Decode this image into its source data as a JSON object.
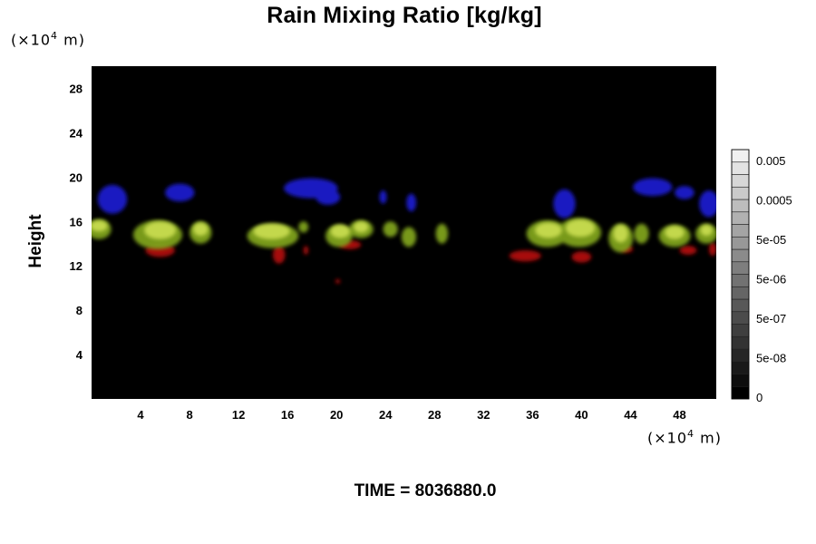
{
  "header": {
    "title": "Rain Mixing Ratio [kg/kg]",
    "y_unit_base": "(×10",
    "y_unit_exp": "4",
    "y_unit_tail": " m)",
    "x_unit_base": "(×10",
    "x_unit_exp": "4",
    "x_unit_tail": " m)",
    "ylabel": "Height",
    "time": "TIME = 8036880.0"
  },
  "chart_data": {
    "type": "heatmap",
    "title": "Rain Mixing Ratio [kg/kg]",
    "ylabel": "Height",
    "x_unit": "(×10^4 m)",
    "y_unit": "(×10^4 m)",
    "xlim": [
      0,
      51
    ],
    "ylim": [
      0,
      30
    ],
    "xticks": [
      "4",
      "8",
      "12",
      "16",
      "20",
      "24",
      "28",
      "32",
      "36",
      "40",
      "44",
      "48"
    ],
    "xtick_values": [
      4,
      8,
      12,
      16,
      20,
      24,
      28,
      32,
      36,
      40,
      44,
      48
    ],
    "yticks": [
      "4",
      "8",
      "12",
      "16",
      "20",
      "24",
      "28"
    ],
    "ytick_values": [
      4,
      8,
      12,
      16,
      20,
      24,
      28
    ],
    "background_color": "#000000",
    "colorbar": {
      "labels": [
        "0.005",
        "0.0005",
        "5e-05",
        "5e-06",
        "5e-07",
        "5e-08",
        "0"
      ],
      "levels": 20,
      "low_color": "#000000",
      "high_color": "#f0f0f0"
    },
    "layers": [
      {
        "color": "#1a1acc",
        "blobs": [
          {
            "x": 1.7,
            "y": 18.0,
            "rx": 1.2,
            "ry": 1.3
          },
          {
            "x": 7.2,
            "y": 18.6,
            "rx": 1.2,
            "ry": 0.8
          },
          {
            "x": 17.9,
            "y": 19.0,
            "rx": 2.2,
            "ry": 0.9
          },
          {
            "x": 19.3,
            "y": 18.2,
            "rx": 1.0,
            "ry": 0.7
          },
          {
            "x": 23.8,
            "y": 18.2,
            "rx": 0.3,
            "ry": 0.6
          },
          {
            "x": 26.1,
            "y": 17.7,
            "rx": 0.4,
            "ry": 0.8
          },
          {
            "x": 38.6,
            "y": 17.6,
            "rx": 0.9,
            "ry": 1.3
          },
          {
            "x": 45.8,
            "y": 19.1,
            "rx": 1.6,
            "ry": 0.8
          },
          {
            "x": 48.4,
            "y": 18.6,
            "rx": 0.8,
            "ry": 0.6
          },
          {
            "x": 50.4,
            "y": 17.6,
            "rx": 0.8,
            "ry": 1.2
          }
        ]
      },
      {
        "color": "#b01010",
        "blobs": [
          {
            "x": 5.6,
            "y": 13.4,
            "rx": 1.2,
            "ry": 0.6
          },
          {
            "x": 15.3,
            "y": 13.0,
            "rx": 0.5,
            "ry": 0.8
          },
          {
            "x": 17.5,
            "y": 13.4,
            "rx": 0.2,
            "ry": 0.4
          },
          {
            "x": 20.1,
            "y": 10.6,
            "rx": 0.2,
            "ry": 0.2
          },
          {
            "x": 21.1,
            "y": 13.9,
            "rx": 0.9,
            "ry": 0.4
          },
          {
            "x": 35.4,
            "y": 12.9,
            "rx": 1.3,
            "ry": 0.5
          },
          {
            "x": 40.0,
            "y": 12.8,
            "rx": 0.8,
            "ry": 0.5
          },
          {
            "x": 43.7,
            "y": 13.5,
            "rx": 0.5,
            "ry": 0.3
          },
          {
            "x": 48.7,
            "y": 13.4,
            "rx": 0.7,
            "ry": 0.4
          },
          {
            "x": 50.7,
            "y": 13.5,
            "rx": 0.3,
            "ry": 0.6
          }
        ]
      },
      {
        "color": "#7fa21c",
        "blobs": [
          {
            "x": 0.6,
            "y": 15.3,
            "rx": 1.0,
            "ry": 0.9
          },
          {
            "x": 5.4,
            "y": 14.8,
            "rx": 2.0,
            "ry": 1.3
          },
          {
            "x": 8.9,
            "y": 15.0,
            "rx": 0.9,
            "ry": 1.0
          },
          {
            "x": 14.8,
            "y": 14.7,
            "rx": 2.1,
            "ry": 1.1
          },
          {
            "x": 17.3,
            "y": 15.5,
            "rx": 0.4,
            "ry": 0.5
          },
          {
            "x": 20.2,
            "y": 14.7,
            "rx": 1.1,
            "ry": 1.0
          },
          {
            "x": 22.0,
            "y": 15.3,
            "rx": 1.0,
            "ry": 0.8
          },
          {
            "x": 24.4,
            "y": 15.3,
            "rx": 0.6,
            "ry": 0.7
          },
          {
            "x": 25.9,
            "y": 14.6,
            "rx": 0.6,
            "ry": 0.9
          },
          {
            "x": 28.6,
            "y": 14.9,
            "rx": 0.5,
            "ry": 0.9
          },
          {
            "x": 37.2,
            "y": 14.9,
            "rx": 1.7,
            "ry": 1.2
          },
          {
            "x": 39.8,
            "y": 15.0,
            "rx": 1.8,
            "ry": 1.3
          },
          {
            "x": 43.2,
            "y": 14.5,
            "rx": 1.0,
            "ry": 1.3
          },
          {
            "x": 44.9,
            "y": 14.9,
            "rx": 0.6,
            "ry": 0.9
          },
          {
            "x": 47.6,
            "y": 14.7,
            "rx": 1.3,
            "ry": 1.0
          },
          {
            "x": 50.2,
            "y": 14.9,
            "rx": 0.9,
            "ry": 0.9
          }
        ]
      },
      {
        "color": "#c8dc50",
        "blobs": [
          {
            "x": 0.6,
            "y": 15.6,
            "rx": 0.7,
            "ry": 0.5
          },
          {
            "x": 5.6,
            "y": 15.2,
            "rx": 1.3,
            "ry": 0.8
          },
          {
            "x": 8.9,
            "y": 15.3,
            "rx": 0.6,
            "ry": 0.6
          },
          {
            "x": 14.7,
            "y": 15.1,
            "rx": 1.5,
            "ry": 0.7
          },
          {
            "x": 20.3,
            "y": 15.1,
            "rx": 0.8,
            "ry": 0.6
          },
          {
            "x": 22.0,
            "y": 15.5,
            "rx": 0.6,
            "ry": 0.5
          },
          {
            "x": 37.3,
            "y": 15.2,
            "rx": 1.1,
            "ry": 0.7
          },
          {
            "x": 39.9,
            "y": 15.4,
            "rx": 1.2,
            "ry": 0.8
          },
          {
            "x": 43.2,
            "y": 14.9,
            "rx": 0.6,
            "ry": 0.8
          },
          {
            "x": 47.6,
            "y": 15.0,
            "rx": 0.8,
            "ry": 0.6
          },
          {
            "x": 50.2,
            "y": 15.2,
            "rx": 0.5,
            "ry": 0.5
          }
        ]
      }
    ]
  }
}
